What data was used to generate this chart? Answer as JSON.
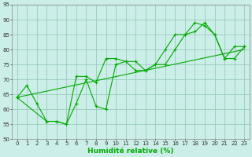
{
  "xlabel": "Humidité relative (%)",
  "bg_color": "#cceee8",
  "grid_color": "#99ccbb",
  "line_color": "#00aa00",
  "xlim": [
    -0.5,
    23.5
  ],
  "ylim": [
    50,
    95
  ],
  "yticks": [
    50,
    55,
    60,
    65,
    70,
    75,
    80,
    85,
    90,
    95
  ],
  "xticks": [
    0,
    1,
    2,
    3,
    4,
    5,
    6,
    7,
    8,
    9,
    10,
    11,
    12,
    13,
    14,
    15,
    16,
    17,
    18,
    19,
    20,
    21,
    22,
    23
  ],
  "line1_x": [
    0,
    1,
    2,
    3,
    4,
    5,
    6,
    7,
    8,
    9,
    10,
    11,
    12,
    13,
    14,
    15,
    16,
    17,
    18,
    19,
    20,
    21,
    22,
    23
  ],
  "line1_y": [
    64,
    68,
    62,
    56,
    56,
    55,
    71,
    71,
    69,
    77,
    77,
    76,
    73,
    73,
    75,
    80,
    85,
    85,
    89,
    88,
    85,
    77,
    81,
    81
  ],
  "line2_x": [
    0,
    3,
    4,
    5,
    6,
    7,
    8,
    9,
    10,
    11,
    12,
    13,
    14,
    15,
    16,
    17,
    18,
    19,
    20,
    21,
    22,
    23
  ],
  "line2_y": [
    64,
    56,
    56,
    55,
    62,
    70,
    61,
    60,
    75,
    76,
    76,
    73,
    75,
    75,
    80,
    85,
    86,
    89,
    85,
    77,
    77,
    81
  ],
  "trend_x": [
    0,
    23
  ],
  "trend_y": [
    64,
    80
  ],
  "xlabel_fontsize": 6.5,
  "tick_fontsize": 5.0
}
